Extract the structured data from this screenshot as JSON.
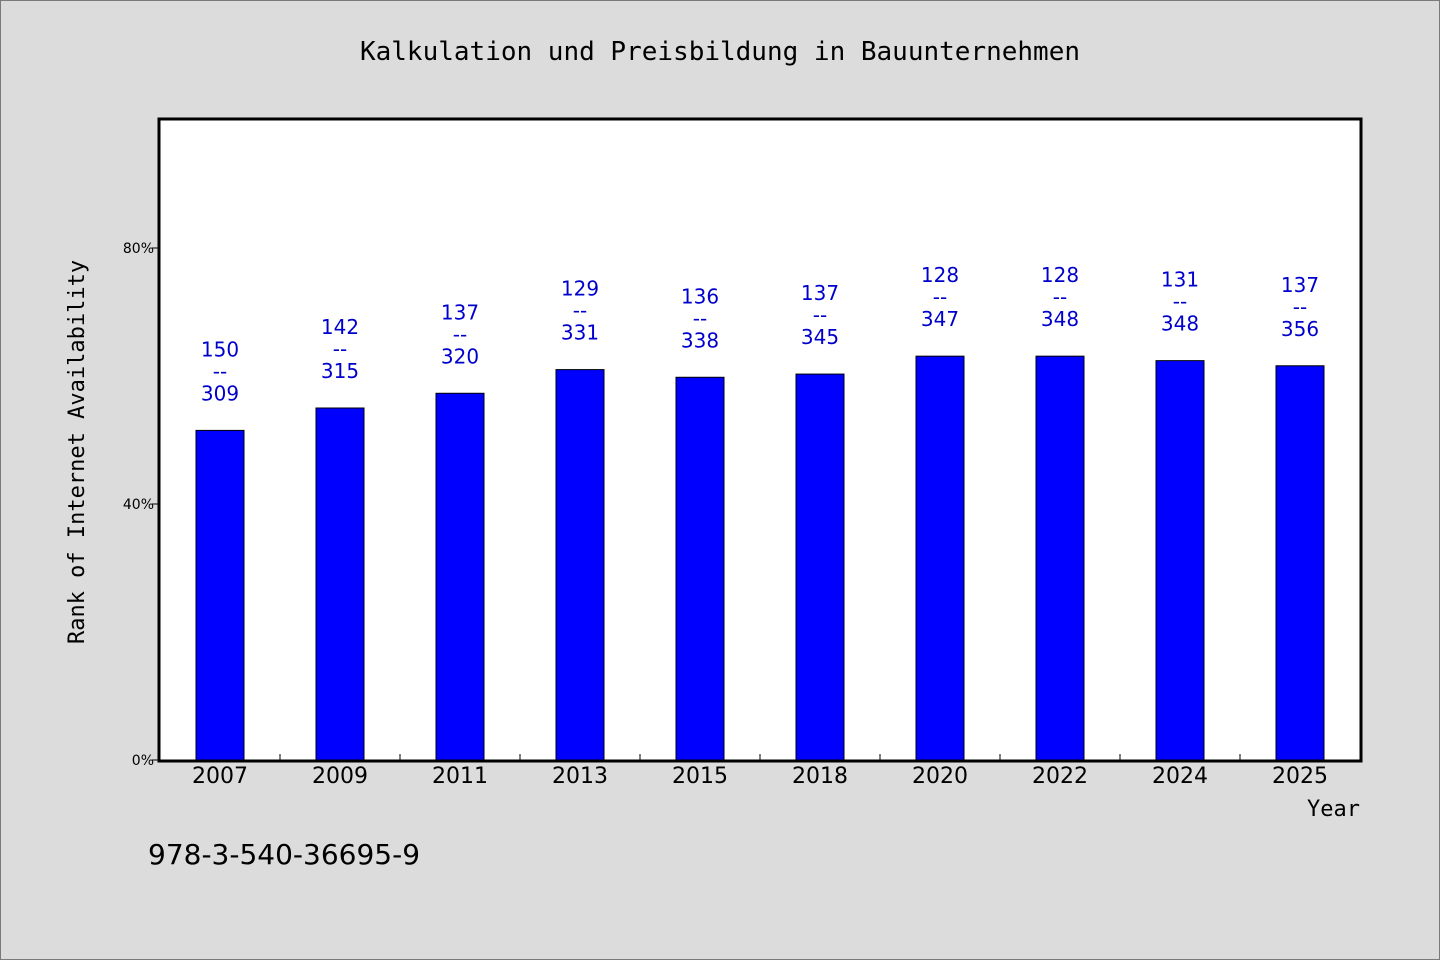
{
  "chart_data": {
    "type": "bar",
    "title": "Kalkulation und Preisbildung in Bauunternehmen",
    "xlabel": "Year",
    "ylabel": "Rank of Internet Availability",
    "categories": [
      "2007",
      "2009",
      "2011",
      "2013",
      "2015",
      "2018",
      "2020",
      "2022",
      "2024",
      "2025"
    ],
    "series": [
      {
        "values": [
          51.5,
          55.0,
          57.3,
          61.0,
          59.8,
          60.3,
          63.1,
          63.1,
          62.4,
          61.6
        ]
      }
    ],
    "data_labels": [
      [
        "150",
        "--",
        "309"
      ],
      [
        "142",
        "--",
        "315"
      ],
      [
        "137",
        "--",
        "320"
      ],
      [
        "129",
        "--",
        "331"
      ],
      [
        "136",
        "--",
        "338"
      ],
      [
        "137",
        "--",
        "345"
      ],
      [
        "128",
        "--",
        "347"
      ],
      [
        "128",
        "--",
        "348"
      ],
      [
        "131",
        "--",
        "348"
      ],
      [
        "137",
        "--",
        "356"
      ]
    ],
    "ylim": [
      0,
      100
    ],
    "yticks": [
      0,
      40,
      80
    ],
    "ytick_labels": [
      "0%",
      "40%",
      "80%"
    ],
    "grid": false,
    "colors": {
      "bar": "#0000ff",
      "label": "#0000cc",
      "background": "#dcdcdc",
      "plot_area": "#ffffff"
    }
  },
  "footer": {
    "isbn": "978-3-540-36695-9"
  }
}
